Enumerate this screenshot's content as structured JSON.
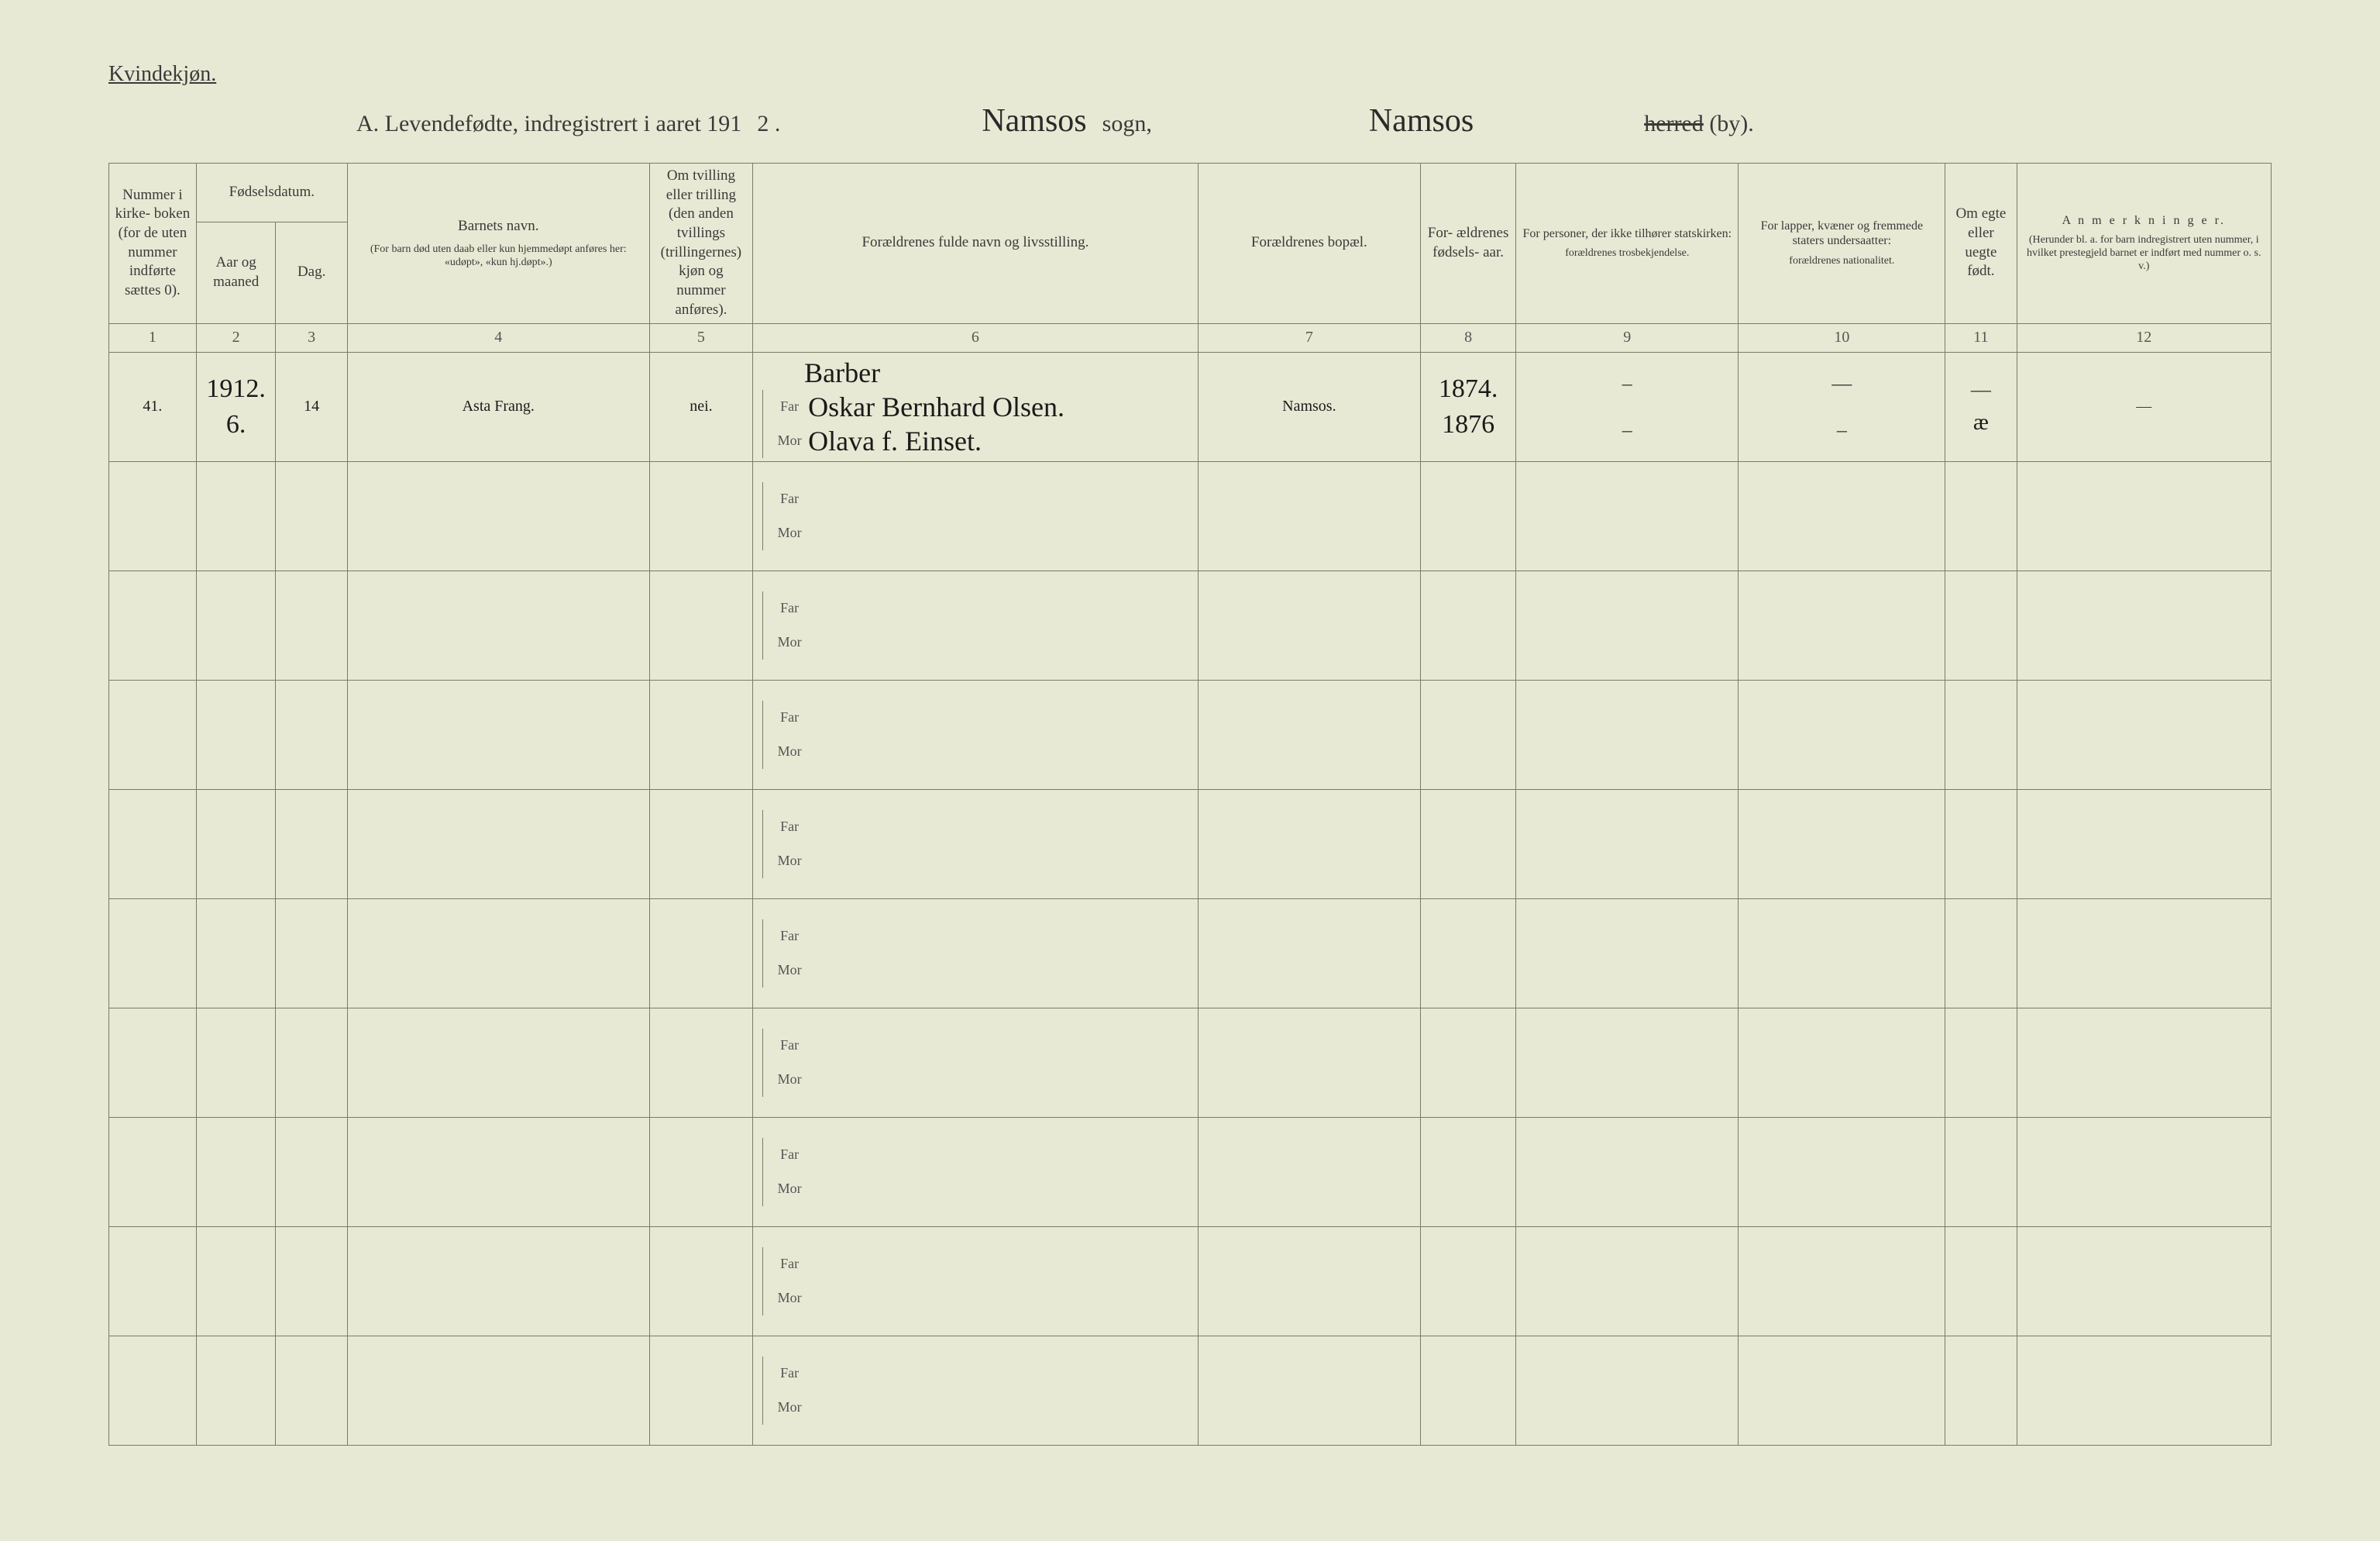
{
  "header": {
    "gender_label": "Kvindekjøn.",
    "title_prefix": "A.  Levendefødte, indregistrert i aaret 191",
    "title_year_suffix": "2 .",
    "sogn_script": "Namsos",
    "sogn_label": "sogn,",
    "herred_script": "Namsos",
    "herred_strike": "herred",
    "herred_suffix": "(by)."
  },
  "columns": {
    "c1": "Nummer i kirke- boken (for de uten nummer indførte sættes 0).",
    "c_fodsel": "Fødselsdatum.",
    "c2": "Aar og maaned",
    "c3": "Dag.",
    "c4_top": "Barnets navn.",
    "c4_sub": "(For barn død uten daab eller kun hjemmedøpt anføres her: «udøpt», «kun hj.døpt».)",
    "c5": "Om tvilling eller trilling (den anden tvillings (trillingernes) kjøn og nummer anføres).",
    "c6": "Forældrenes fulde navn og livsstilling.",
    "c7": "Forældrenes bopæl.",
    "c8": "For- ældrenes fødsels- aar.",
    "c9_top": "For personer, der ikke tilhører statskirken:",
    "c9_sub": "forældrenes trosbekjendelse.",
    "c10_top": "For lapper, kvæner og fremmede staters undersaatter:",
    "c10_sub": "forældrenes nationalitet.",
    "c11": "Om egte eller uegte født.",
    "c12_top": "A n m e r k n i n g e r.",
    "c12_sub": "(Herunder bl. a. for barn indregistrert uten nummer, i hvilket prestegjeld barnet er indført med nummer o. s. v.)"
  },
  "colnums": [
    "1",
    "2",
    "3",
    "4",
    "5",
    "6",
    "7",
    "8",
    "9",
    "10",
    "11",
    "12"
  ],
  "parent_labels": {
    "far": "Far",
    "mor": "Mor"
  },
  "entry": {
    "number": "41.",
    "year_month_top": "1912.",
    "year_month_bot": "6.",
    "day": "14",
    "child_name": "Asta Frang.",
    "tvilling": "nei.",
    "father_occupation": "Barber",
    "father_name": "Oskar Bernhard Olsen.",
    "mother_name": "Olava f. Einset.",
    "bopael": "Namsos.",
    "father_birth": "1874.",
    "mother_birth": "1876",
    "col9_top": "–",
    "col9_bot": "–",
    "col10_top": "—",
    "col10_bot": "–",
    "egte_top": "—",
    "egte_bot": "æ",
    "anm": "—"
  }
}
